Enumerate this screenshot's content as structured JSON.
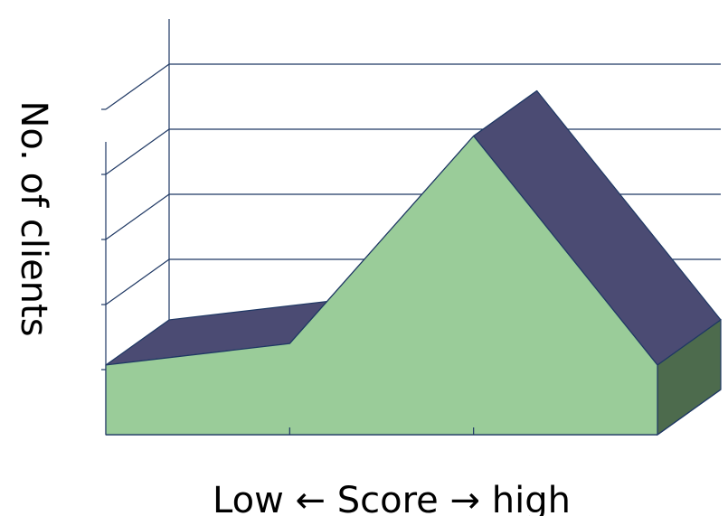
{
  "chart_data": {
    "type": "area",
    "style": "3d",
    "title": "",
    "xlabel": "Low ← Score → high",
    "ylabel": "No. of clients",
    "categories": [
      "",
      "",
      "",
      ""
    ],
    "values": [
      1.07,
      1.4,
      4.59,
      1.07
    ],
    "ylim": [
      0,
      5
    ],
    "grid": true,
    "legend": "none"
  },
  "colors": {
    "front_face": "#9ACC99",
    "top_face": "#4B4B73",
    "side_face": "#4D6B4D",
    "axis_line": "#1F3864"
  }
}
